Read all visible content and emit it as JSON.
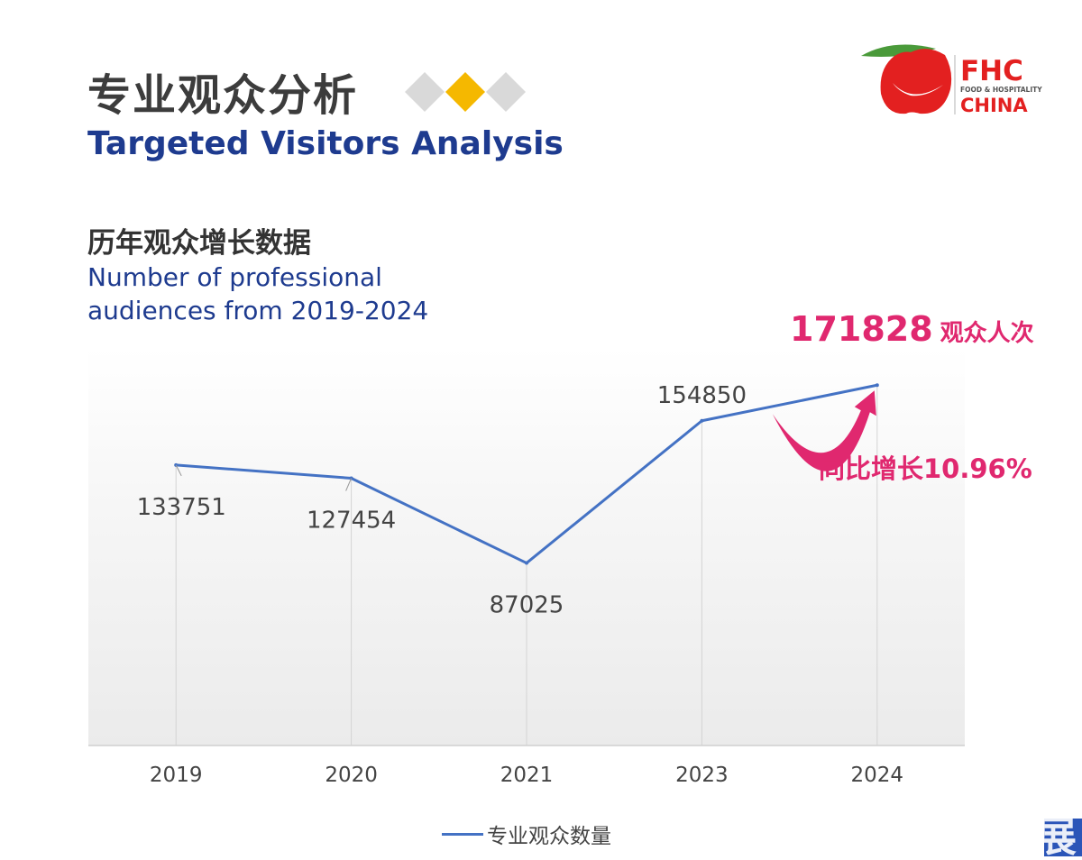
{
  "title_cn": "专业观众分析",
  "title_en": "Targeted Visitors Analysis",
  "subtitle_cn": "历年观众增长数据",
  "subtitle_en": "Number of professional audiences from 2019-2024",
  "logo": {
    "line1": "FHC",
    "line2": "FOOD & HOSPITALITY",
    "line3": "CHINA",
    "icon": "apple-icon"
  },
  "colors": {
    "title_blue": "#1e3b8f",
    "line": "#4472c4",
    "highlight": "#e0286f",
    "diamond_grey": "#d9d9d9",
    "diamond_gold": "#f5b800"
  },
  "chart_data": {
    "type": "line",
    "categories": [
      "2019",
      "2020",
      "2021",
      "2023",
      "2024"
    ],
    "series": [
      {
        "name": "专业观众数量",
        "values": [
          133751,
          127454,
          87025,
          154850,
          171828
        ]
      }
    ],
    "data_labels": [
      "133751",
      "127454",
      "87025",
      "154850",
      ""
    ],
    "ylim": [
      0,
      190000
    ],
    "grid": "vertical",
    "legend_position": "bottom",
    "annotations": {
      "total_value": "171828",
      "total_unit": "观众人次",
      "growth": "同比增长10.96%"
    }
  },
  "watermark_text": "展"
}
